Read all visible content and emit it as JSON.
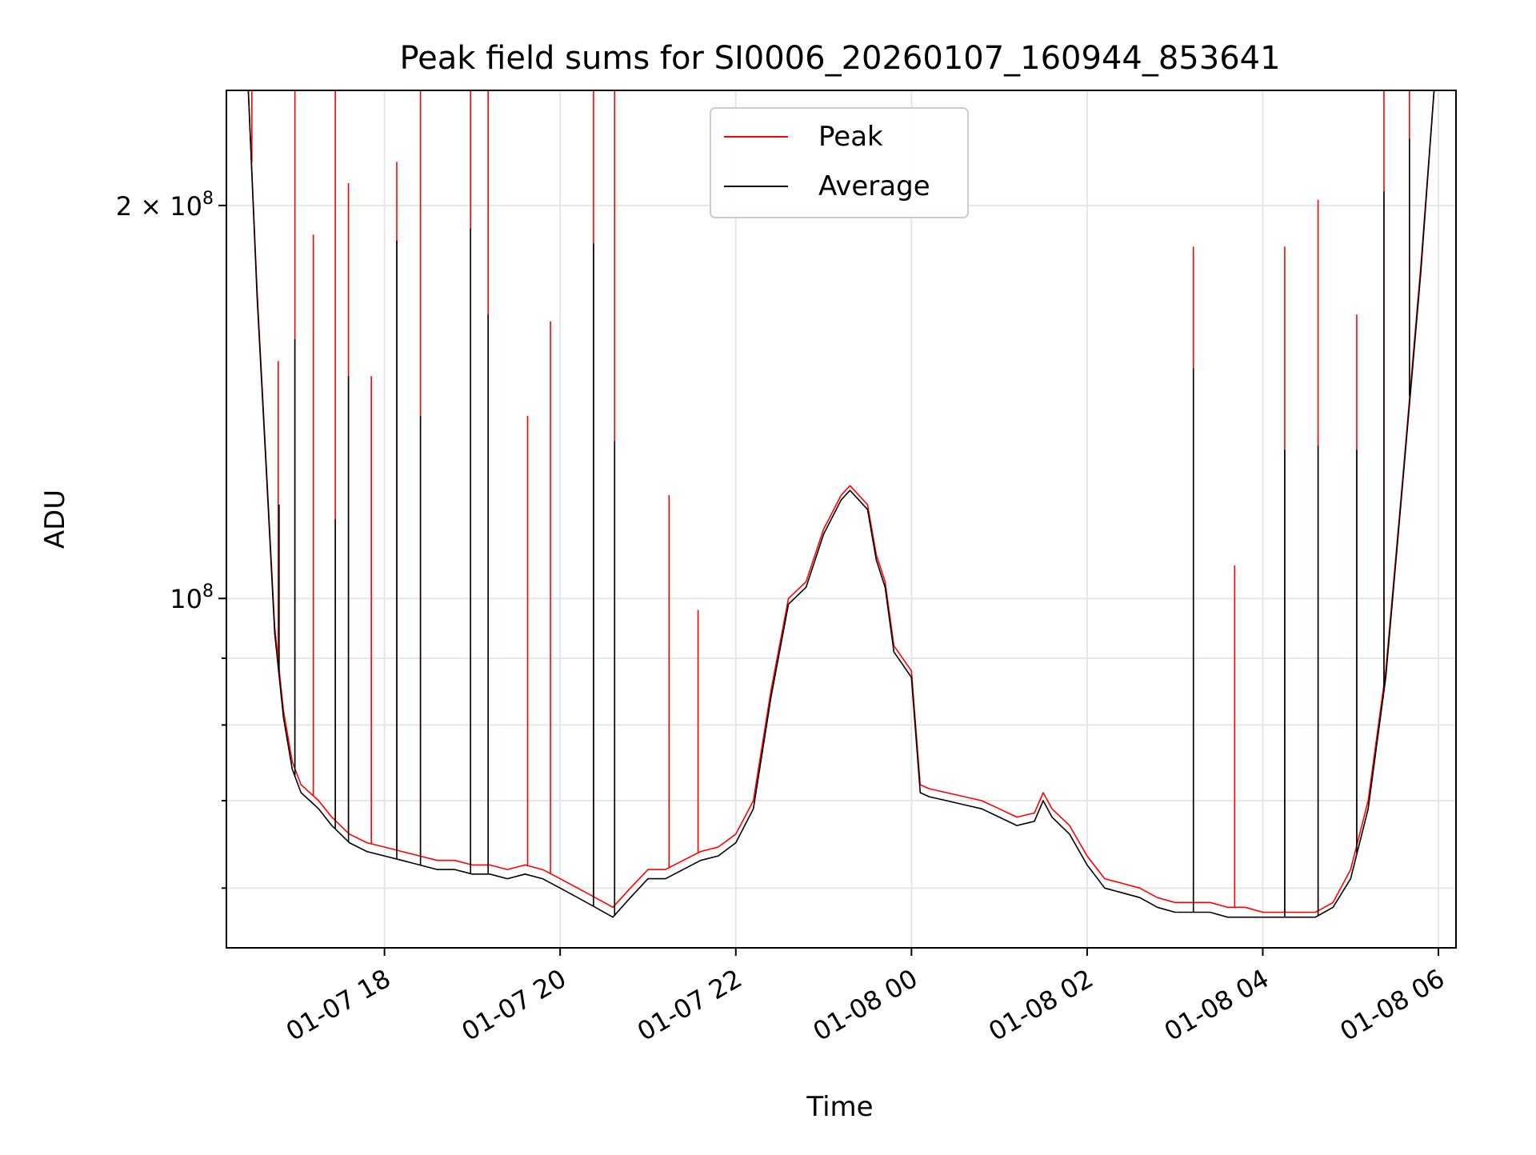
{
  "chart_data": {
    "type": "line",
    "title": "Peak field sums for SI0006_20260107_160944_853641",
    "xlabel": "Time",
    "ylabel": "ADU",
    "yscale": "log",
    "grid": true,
    "legend_position": "upper-center",
    "x_unit": "hours since 2026-01-07 00:00",
    "xlim": [
      16.2,
      30.2
    ],
    "ylim": [
      54000000,
      245000000
    ],
    "x_ticks": [
      {
        "value": 18,
        "label": "01-07 18"
      },
      {
        "value": 20,
        "label": "01-07 20"
      },
      {
        "value": 22,
        "label": "01-07 22"
      },
      {
        "value": 24,
        "label": "01-08 00"
      },
      {
        "value": 26,
        "label": "01-08 02"
      },
      {
        "value": 28,
        "label": "01-08 04"
      },
      {
        "value": 30,
        "label": "01-08 06"
      }
    ],
    "y_major_ticks": [
      {
        "value": 100000000,
        "label": "10",
        "exponent": "8",
        "prefix": ""
      },
      {
        "value": 200000000,
        "label": "10",
        "exponent": "8",
        "prefix": "2 × "
      }
    ],
    "y_minor_ticks": [
      60000000,
      70000000,
      80000000,
      90000000
    ],
    "series": [
      {
        "name": "Peak",
        "color": "#ff0000",
        "x": [
          16.2,
          16.45,
          16.55,
          16.65,
          16.75,
          16.85,
          16.95,
          17.05,
          17.15,
          17.25,
          17.4,
          17.6,
          17.8,
          18.0,
          18.2,
          18.4,
          18.6,
          18.8,
          19.0,
          19.2,
          19.4,
          19.6,
          19.8,
          20.0,
          20.2,
          20.4,
          20.6,
          20.8,
          21.0,
          21.2,
          21.4,
          21.6,
          21.8,
          22.0,
          22.2,
          22.4,
          22.6,
          22.8,
          23.0,
          23.2,
          23.3,
          23.5,
          23.6,
          23.7,
          23.8,
          23.9,
          24.0,
          24.1,
          24.2,
          24.4,
          24.6,
          24.8,
          25.0,
          25.2,
          25.4,
          25.5,
          25.6,
          25.8,
          26.0,
          26.2,
          26.4,
          26.6,
          26.8,
          27.0,
          27.2,
          27.4,
          27.6,
          27.8,
          28.0,
          28.2,
          28.4,
          28.6,
          28.8,
          29.0,
          29.2,
          29.4,
          29.6,
          29.8,
          29.95,
          30.2
        ],
        "values": [
          245000000,
          245000000,
          172000000,
          128000000,
          95000000,
          82000000,
          75000000,
          72000000,
          71000000,
          70000000,
          68000000,
          66000000,
          65000000,
          64500000,
          64000000,
          63500000,
          63000000,
          63000000,
          62500000,
          62500000,
          62000000,
          62500000,
          62000000,
          61000000,
          60000000,
          59000000,
          58000000,
          60000000,
          62000000,
          62000000,
          63000000,
          64000000,
          64500000,
          66000000,
          70000000,
          85000000,
          100000000,
          103000000,
          113000000,
          120000000,
          122000000,
          118000000,
          108000000,
          103000000,
          92000000,
          90000000,
          88000000,
          72000000,
          71500000,
          71000000,
          70500000,
          70000000,
          69000000,
          68000000,
          68500000,
          71000000,
          69000000,
          67000000,
          63500000,
          61000000,
          60500000,
          60000000,
          59000000,
          58500000,
          58500000,
          58500000,
          58000000,
          58000000,
          57500000,
          57500000,
          57500000,
          57500000,
          58500000,
          62000000,
          70000000,
          88000000,
          125000000,
          180000000,
          245000000,
          245000000
        ],
        "spikes": [
          {
            "x": 16.49,
            "value": 245000000
          },
          {
            "x": 16.79,
            "value": 152000000
          },
          {
            "x": 16.98,
            "value": 245000000
          },
          {
            "x": 17.19,
            "value": 190000000
          },
          {
            "x": 17.44,
            "value": 245000000
          },
          {
            "x": 17.59,
            "value": 208000000
          },
          {
            "x": 17.85,
            "value": 148000000
          },
          {
            "x": 18.14,
            "value": 216000000
          },
          {
            "x": 18.41,
            "value": 245000000
          },
          {
            "x": 18.98,
            "value": 245000000
          },
          {
            "x": 19.18,
            "value": 245000000
          },
          {
            "x": 19.63,
            "value": 138000000
          },
          {
            "x": 19.89,
            "value": 163000000
          },
          {
            "x": 20.38,
            "value": 245000000
          },
          {
            "x": 20.62,
            "value": 245000000
          },
          {
            "x": 21.24,
            "value": 120000000
          },
          {
            "x": 21.57,
            "value": 98000000
          },
          {
            "x": 27.21,
            "value": 186000000
          },
          {
            "x": 27.68,
            "value": 106000000
          },
          {
            "x": 28.25,
            "value": 186000000
          },
          {
            "x": 28.63,
            "value": 202000000
          },
          {
            "x": 29.07,
            "value": 165000000
          },
          {
            "x": 29.38,
            "value": 245000000
          },
          {
            "x": 29.67,
            "value": 245000000
          }
        ]
      },
      {
        "name": "Average",
        "color": "#000000",
        "x": [
          16.2,
          16.45,
          16.55,
          16.65,
          16.75,
          16.85,
          16.95,
          17.05,
          17.15,
          17.25,
          17.4,
          17.6,
          17.8,
          18.0,
          18.2,
          18.4,
          18.6,
          18.8,
          19.0,
          19.2,
          19.4,
          19.6,
          19.8,
          20.0,
          20.2,
          20.4,
          20.6,
          20.8,
          21.0,
          21.2,
          21.4,
          21.6,
          21.8,
          22.0,
          22.2,
          22.4,
          22.6,
          22.8,
          23.0,
          23.2,
          23.3,
          23.5,
          23.6,
          23.7,
          23.8,
          23.9,
          24.0,
          24.1,
          24.2,
          24.4,
          24.6,
          24.8,
          25.0,
          25.2,
          25.4,
          25.5,
          25.6,
          25.8,
          26.0,
          26.2,
          26.4,
          26.6,
          26.8,
          27.0,
          27.2,
          27.4,
          27.6,
          27.8,
          28.0,
          28.2,
          28.4,
          28.6,
          28.8,
          29.0,
          29.2,
          29.4,
          29.6,
          29.8,
          29.95,
          30.2
        ],
        "values": [
          245000000,
          245000000,
          170000000,
          127000000,
          94000000,
          81000000,
          74000000,
          71000000,
          70000000,
          69000000,
          67000000,
          65000000,
          64000000,
          63500000,
          63000000,
          62500000,
          62000000,
          62000000,
          61500000,
          61500000,
          61000000,
          61500000,
          61000000,
          60000000,
          59000000,
          58000000,
          57000000,
          59000000,
          61000000,
          61000000,
          62000000,
          63000000,
          63500000,
          65000000,
          69000000,
          84000000,
          99000000,
          102000000,
          112000000,
          119000000,
          121000000,
          117000000,
          107000000,
          102000000,
          91000000,
          89000000,
          87000000,
          71000000,
          70500000,
          70000000,
          69500000,
          69000000,
          68000000,
          67000000,
          67500000,
          70000000,
          68000000,
          66000000,
          62500000,
          60000000,
          59500000,
          59000000,
          58000000,
          57500000,
          57500000,
          57500000,
          57000000,
          57000000,
          57000000,
          57000000,
          57000000,
          57000000,
          58000000,
          61000000,
          69000000,
          87000000,
          124000000,
          178000000,
          245000000,
          245000000
        ],
        "spikes": [
          {
            "x": 16.8,
            "value": 118000000
          },
          {
            "x": 16.98,
            "value": 158000000
          },
          {
            "x": 17.44,
            "value": 115000000
          },
          {
            "x": 17.59,
            "value": 148000000
          },
          {
            "x": 18.14,
            "value": 188000000
          },
          {
            "x": 18.41,
            "value": 138000000
          },
          {
            "x": 18.98,
            "value": 192000000
          },
          {
            "x": 19.18,
            "value": 165000000
          },
          {
            "x": 20.38,
            "value": 187000000
          },
          {
            "x": 20.62,
            "value": 132000000
          },
          {
            "x": 27.21,
            "value": 150000000
          },
          {
            "x": 28.25,
            "value": 130000000
          },
          {
            "x": 28.63,
            "value": 131000000
          },
          {
            "x": 29.07,
            "value": 130000000
          },
          {
            "x": 29.38,
            "value": 205000000
          },
          {
            "x": 29.67,
            "value": 225000000
          }
        ]
      }
    ]
  }
}
